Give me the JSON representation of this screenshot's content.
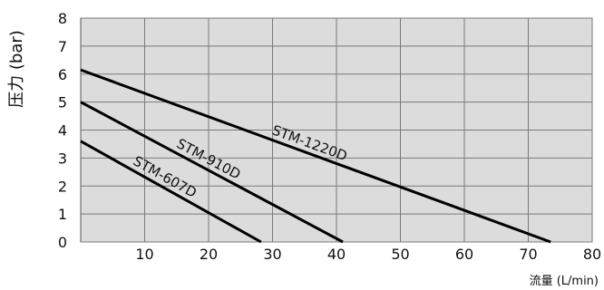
{
  "chart_data": {
    "type": "line",
    "xlabel": "流量 (L/min)",
    "ylabel": "压力 (bar)",
    "xlim": [
      0,
      80
    ],
    "ylim": [
      0,
      8
    ],
    "x_ticks": [
      10,
      20,
      30,
      40,
      50,
      60,
      70,
      80
    ],
    "y_ticks": [
      0,
      1,
      2,
      3,
      4,
      5,
      6,
      7,
      8
    ],
    "grid": true,
    "plot_background": "#dcdcdc",
    "grid_color": "#7a7a7a",
    "line_color": "#000000",
    "series": [
      {
        "name": "STM-1220D",
        "x": [
          0,
          73.5
        ],
        "y": [
          6.15,
          0
        ]
      },
      {
        "name": "STM-910D",
        "x": [
          0,
          41
        ],
        "y": [
          5.0,
          0
        ]
      },
      {
        "name": "STM-607D",
        "x": [
          0,
          28.2
        ],
        "y": [
          3.6,
          0
        ]
      }
    ]
  }
}
